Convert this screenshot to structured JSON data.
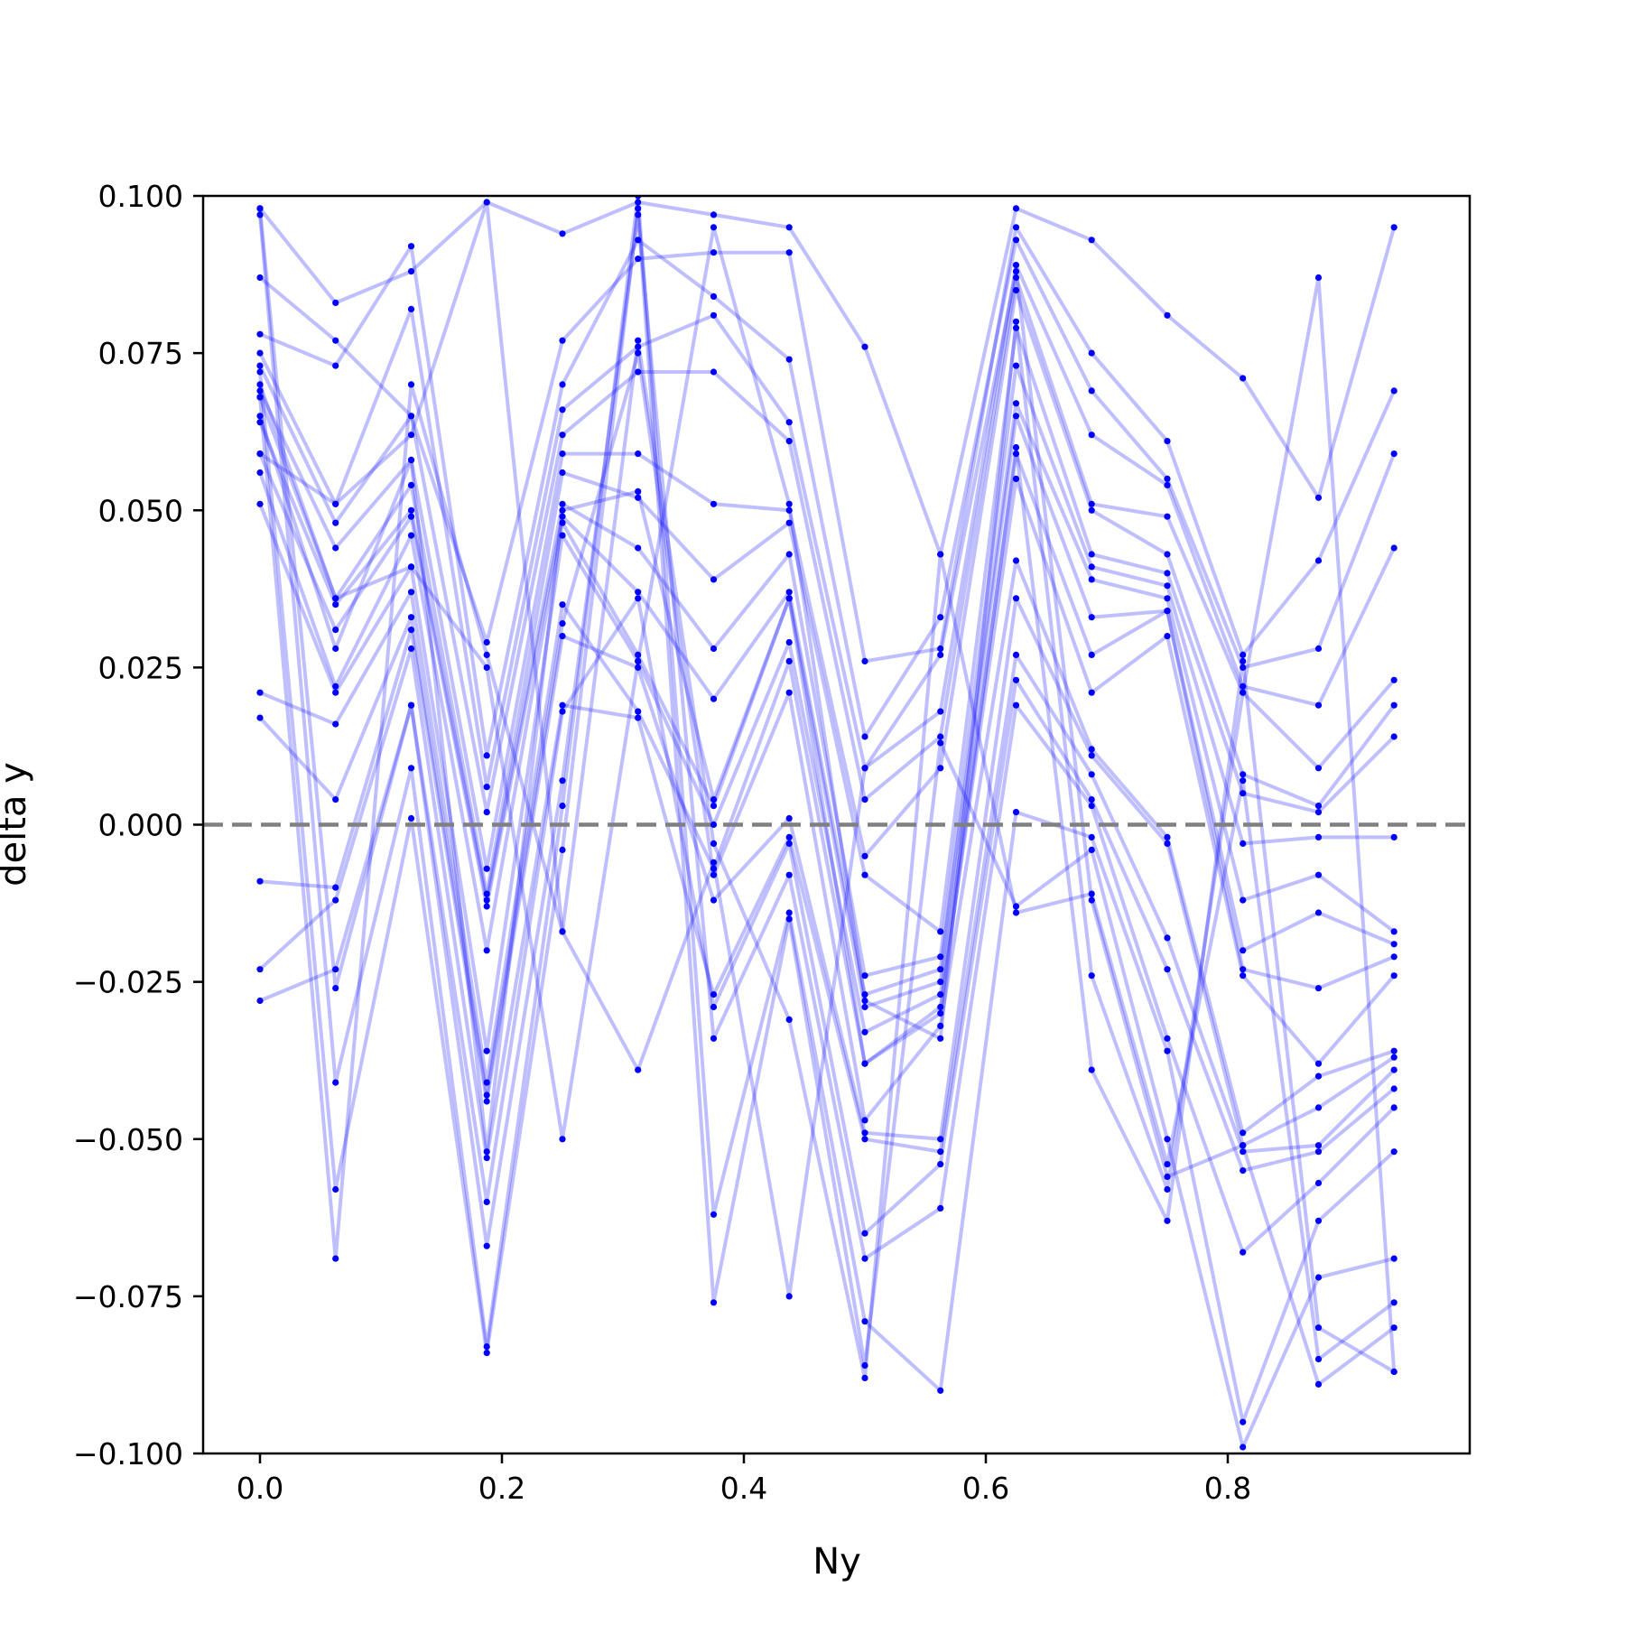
{
  "chart_data": {
    "type": "line",
    "xlabel": "Ny",
    "ylabel": "delta y",
    "xlim": [
      -0.047,
      1.0
    ],
    "ylim": [
      -0.1,
      0.1
    ],
    "x_ticks": [
      {
        "value": 0.0,
        "label": "0.0"
      },
      {
        "value": 0.2,
        "label": "0.2"
      },
      {
        "value": 0.4,
        "label": "0.4"
      },
      {
        "value": 0.6,
        "label": "0.6"
      },
      {
        "value": 0.8,
        "label": "0.8"
      }
    ],
    "y_ticks": [
      {
        "value": 0.1,
        "label": "0.100"
      },
      {
        "value": 0.075,
        "label": "0.075"
      },
      {
        "value": 0.05,
        "label": "0.050"
      },
      {
        "value": 0.025,
        "label": "0.025"
      },
      {
        "value": 0.0,
        "label": "0.000"
      },
      {
        "value": -0.025,
        "label": "−0.025"
      },
      {
        "value": -0.05,
        "label": "−0.050"
      },
      {
        "value": -0.075,
        "label": "−0.075"
      },
      {
        "value": -0.1,
        "label": "−0.100"
      }
    ],
    "reference_line": {
      "y": 0.0,
      "style": "dashed",
      "color": "#808080"
    },
    "line_color": "#0000ff",
    "line_opacity": 0.25,
    "marker_color": "#0000ff",
    "grid": false,
    "x": [
      0.0,
      0.0625,
      0.125,
      0.1875,
      0.25,
      0.3125,
      0.375,
      0.4375,
      0.5,
      0.5625,
      0.625,
      0.6875,
      0.75,
      0.8125,
      0.875,
      0.9375
    ],
    "series": [
      {
        "values": [
          0.098,
          0.083,
          0.088,
          0.099,
          0.094,
          0.099,
          0.097,
          0.095,
          0.076,
          0.043,
          0.098,
          0.093,
          0.081,
          0.071,
          0.052,
          0.095
        ]
      },
      {
        "values": [
          0.087,
          0.077,
          0.065,
          0.029,
          0.077,
          0.09,
          0.091,
          0.091,
          0.026,
          0.028,
          0.095,
          0.075,
          0.061,
          0.027,
          0.042,
          0.069
        ]
      },
      {
        "values": [
          0.078,
          0.073,
          0.092,
          0.011,
          0.07,
          0.093,
          0.084,
          0.074,
          0.014,
          0.033,
          0.093,
          0.069,
          0.055,
          0.025,
          0.028,
          0.059
        ]
      },
      {
        "values": [
          0.075,
          0.051,
          0.082,
          0.006,
          0.066,
          0.076,
          0.081,
          0.064,
          0.009,
          0.018,
          0.089,
          0.062,
          0.054,
          0.022,
          0.019,
          0.044
        ]
      },
      {
        "values": [
          0.073,
          0.048,
          0.065,
          0.002,
          0.062,
          0.072,
          0.072,
          0.061,
          0.004,
          0.014,
          0.087,
          0.051,
          0.049,
          0.021,
          0.009,
          0.023
        ]
      },
      {
        "values": [
          0.069,
          0.044,
          0.058,
          -0.007,
          0.059,
          0.059,
          0.051,
          0.05,
          -0.005,
          0.009,
          0.085,
          0.05,
          0.043,
          0.008,
          0.003,
          0.019
        ]
      },
      {
        "values": [
          0.068,
          0.036,
          0.054,
          -0.011,
          0.056,
          0.052,
          0.039,
          0.048,
          -0.008,
          -0.017,
          0.079,
          0.043,
          0.04,
          0.005,
          0.002,
          0.014
        ]
      },
      {
        "values": [
          0.064,
          0.035,
          0.05,
          -0.012,
          0.051,
          0.044,
          0.028,
          0.043,
          -0.024,
          -0.021,
          0.073,
          0.041,
          0.038,
          -0.003,
          -0.002,
          -0.002
        ]
      },
      {
        "values": [
          0.059,
          0.031,
          0.049,
          -0.013,
          0.049,
          0.037,
          0.02,
          0.037,
          -0.027,
          -0.023,
          0.067,
          0.039,
          0.036,
          -0.012,
          -0.008,
          -0.017
        ]
      },
      {
        "values": [
          0.056,
          0.022,
          0.046,
          -0.02,
          0.048,
          0.027,
          0.003,
          0.036,
          -0.029,
          -0.025,
          0.065,
          0.033,
          0.034,
          -0.02,
          -0.014,
          -0.019
        ]
      },
      {
        "values": [
          0.051,
          0.021,
          0.041,
          -0.036,
          0.046,
          0.026,
          0.0,
          0.029,
          -0.033,
          -0.027,
          0.059,
          0.027,
          0.034,
          -0.023,
          -0.026,
          -0.021
        ]
      },
      {
        "values": [
          0.021,
          0.016,
          0.037,
          -0.041,
          0.035,
          0.018,
          -0.007,
          0.026,
          -0.038,
          -0.029,
          0.055,
          0.021,
          0.03,
          -0.024,
          -0.038,
          -0.024
        ]
      },
      {
        "values": [
          0.017,
          0.004,
          0.033,
          -0.043,
          0.032,
          0.075,
          -0.008,
          0.021,
          -0.047,
          -0.032,
          0.042,
          0.012,
          -0.002,
          -0.049,
          -0.04,
          -0.036
        ]
      },
      {
        "values": [
          -0.009,
          -0.01,
          0.031,
          -0.044,
          0.03,
          0.025,
          -0.012,
          0.001,
          -0.049,
          -0.05,
          0.036,
          0.011,
          -0.003,
          -0.051,
          -0.045,
          -0.037
        ]
      },
      {
        "values": [
          -0.023,
          -0.012,
          0.028,
          -0.053,
          0.019,
          0.017,
          -0.027,
          -0.002,
          -0.05,
          -0.052,
          0.027,
          0.008,
          -0.018,
          -0.052,
          -0.051,
          -0.039
        ]
      },
      {
        "values": [
          -0.028,
          -0.023,
          0.019,
          -0.06,
          0.018,
          0.036,
          -0.029,
          -0.003,
          -0.065,
          -0.054,
          0.023,
          0.004,
          -0.023,
          -0.055,
          -0.052,
          -0.042
        ]
      },
      {
        "values": [
          0.098,
          -0.026,
          0.019,
          -0.067,
          0.007,
          0.097,
          -0.034,
          -0.008,
          -0.069,
          -0.061,
          0.019,
          0.003,
          -0.034,
          -0.068,
          -0.057,
          -0.045
        ]
      },
      {
        "values": [
          0.097,
          -0.041,
          0.009,
          -0.083,
          0.003,
          0.1,
          -0.062,
          -0.014,
          -0.079,
          -0.09,
          0.002,
          -0.002,
          -0.036,
          -0.095,
          -0.063,
          -0.052
        ]
      },
      {
        "values": [
          0.072,
          -0.058,
          0.001,
          -0.084,
          -0.004,
          0.098,
          -0.076,
          -0.015,
          -0.086,
          0.013,
          -0.013,
          -0.004,
          -0.05,
          -0.099,
          -0.072,
          -0.069
        ]
      },
      {
        "values": [
          0.068,
          -0.069,
          0.07,
          0.027,
          -0.017,
          0.077,
          -0.003,
          -0.031,
          -0.088,
          0.043,
          -0.014,
          -0.011,
          -0.054,
          0.007,
          -0.085,
          -0.076
        ]
      },
      {
        "values": [
          0.059,
          0.051,
          0.062,
          0.099,
          -0.017,
          -0.039,
          -0.006,
          -0.075,
          0.009,
          0.027,
          0.088,
          -0.012,
          -0.056,
          -0.051,
          -0.089,
          -0.08
        ]
      },
      {
        "values": [
          0.07,
          0.036,
          0.041,
          0.025,
          -0.05,
          0.026,
          0.095,
          0.051,
          -0.028,
          -0.034,
          0.08,
          -0.024,
          -0.058,
          0.021,
          0.087,
          -0.087
        ]
      },
      {
        "values": [
          0.065,
          0.028,
          0.058,
          -0.052,
          0.05,
          0.053,
          0.004,
          0.036,
          -0.038,
          -0.03,
          0.06,
          -0.039,
          -0.063,
          0.026,
          -0.08,
          -0.087
        ]
      }
    ]
  }
}
